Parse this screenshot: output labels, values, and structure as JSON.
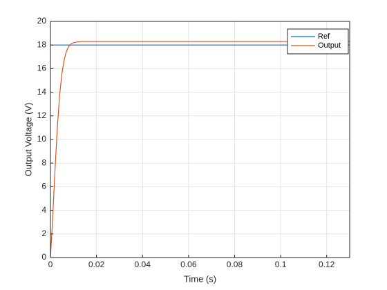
{
  "chart_data": {
    "type": "line",
    "xlabel": "Time (s)",
    "ylabel": "Output Voltage (V)",
    "xlim": [
      0,
      0.13
    ],
    "ylim": [
      0,
      20
    ],
    "xticks": [
      0,
      0.02,
      0.04,
      0.06,
      0.08,
      0.1,
      0.12
    ],
    "yticks": [
      0,
      2,
      4,
      6,
      8,
      10,
      12,
      14,
      16,
      18,
      20
    ],
    "grid": true,
    "legend": "northeast",
    "series": [
      {
        "name": "Ref",
        "color": "#0072bd",
        "x": [
          0,
          0.13
        ],
        "values": [
          18,
          18
        ]
      },
      {
        "name": "Output",
        "color": "#d95319",
        "x": [
          0,
          0.001,
          0.002,
          0.003,
          0.004,
          0.005,
          0.006,
          0.007,
          0.008,
          0.009,
          0.01,
          0.012,
          0.014,
          0.016,
          0.02,
          0.13
        ],
        "values": [
          0,
          3.5,
          7.5,
          11,
          13.8,
          15.6,
          16.8,
          17.5,
          17.9,
          18.1,
          18.2,
          18.27,
          18.3,
          18.3,
          18.3,
          18.3
        ]
      }
    ]
  }
}
